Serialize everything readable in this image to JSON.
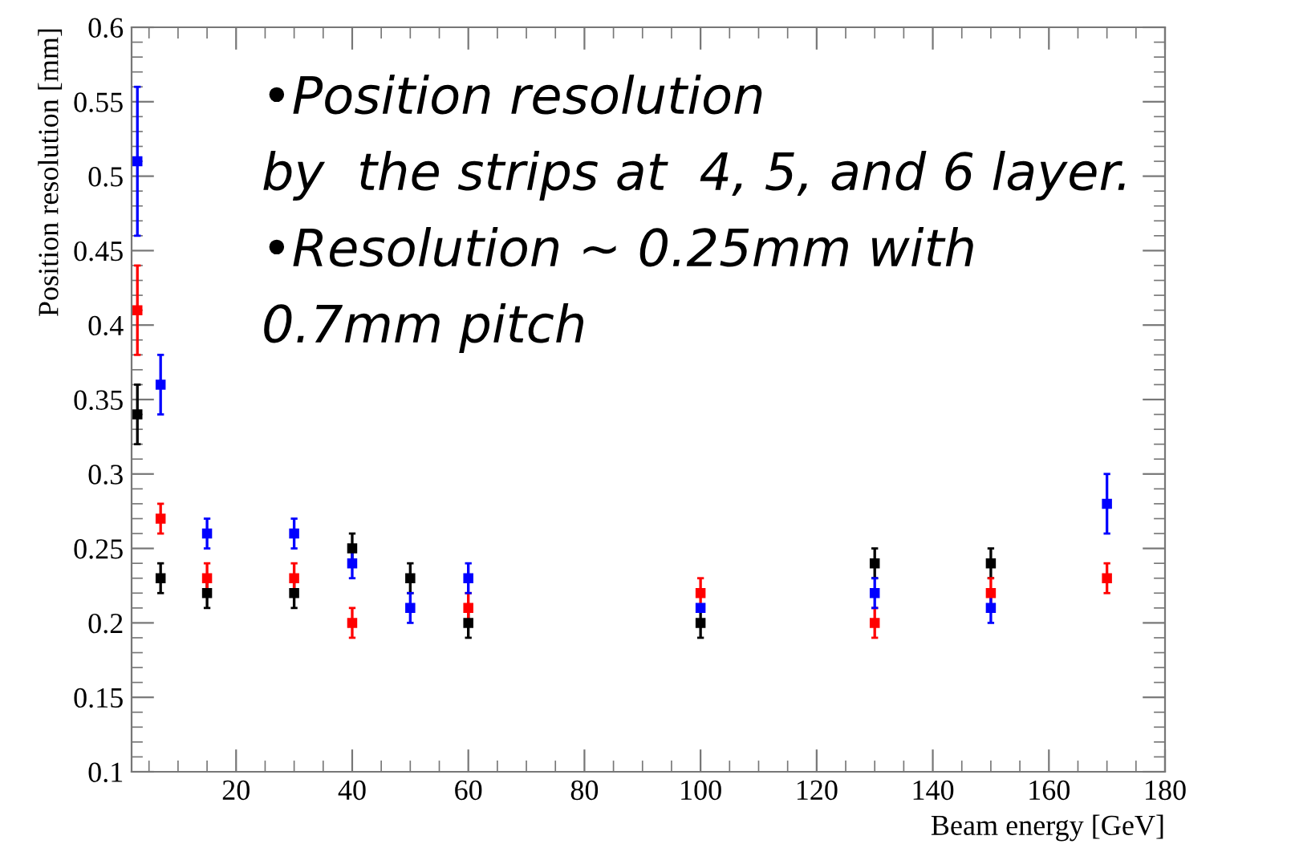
{
  "chart_data": {
    "type": "scatter",
    "xlabel": "Beam energy [GeV]",
    "ylabel": "Position resolution [mm]",
    "xlim": [
      2,
      180
    ],
    "xticks": [
      20,
      40,
      60,
      80,
      100,
      120,
      140,
      160,
      180
    ],
    "ylim": [
      0.1,
      0.6
    ],
    "yticks": [
      0.1,
      0.15,
      0.2,
      0.25,
      0.3,
      0.35,
      0.4,
      0.45,
      0.5,
      0.55,
      0.6
    ],
    "grid": false,
    "legend": false,
    "marker": "square",
    "series": [
      {
        "color": "#000000",
        "x": [
          3,
          7,
          15,
          30,
          40,
          50,
          60,
          100,
          130,
          150
        ],
        "values": [
          0.34,
          0.23,
          0.22,
          0.22,
          0.25,
          0.23,
          0.2,
          0.2,
          0.24,
          0.24
        ],
        "errors": [
          0.02,
          0.01,
          0.01,
          0.01,
          0.01,
          0.01,
          0.01,
          0.01,
          0.01,
          0.01
        ]
      },
      {
        "color": "#ff0000",
        "x": [
          3,
          7,
          15,
          30,
          40,
          60,
          100,
          130,
          150,
          170
        ],
        "values": [
          0.41,
          0.27,
          0.23,
          0.23,
          0.2,
          0.21,
          0.22,
          0.2,
          0.22,
          0.23
        ],
        "errors": [
          0.03,
          0.01,
          0.01,
          0.01,
          0.01,
          0.01,
          0.01,
          0.01,
          0.01,
          0.01
        ]
      },
      {
        "color": "#0000ff",
        "x": [
          3,
          7,
          15,
          30,
          40,
          50,
          60,
          100,
          130,
          150,
          170
        ],
        "values": [
          0.51,
          0.36,
          0.26,
          0.26,
          0.24,
          0.21,
          0.23,
          0.21,
          0.22,
          0.21,
          0.28
        ],
        "errors": [
          0.05,
          0.02,
          0.01,
          0.01,
          0.01,
          0.01,
          0.01,
          null,
          0.01,
          0.01,
          0.02
        ]
      }
    ],
    "annotations": [
      "•Position resolution",
      "by  the strips at  4, 5, and 6 layer.",
      "•Resolution ~ 0.25mm with",
      "0.7mm pitch"
    ]
  }
}
